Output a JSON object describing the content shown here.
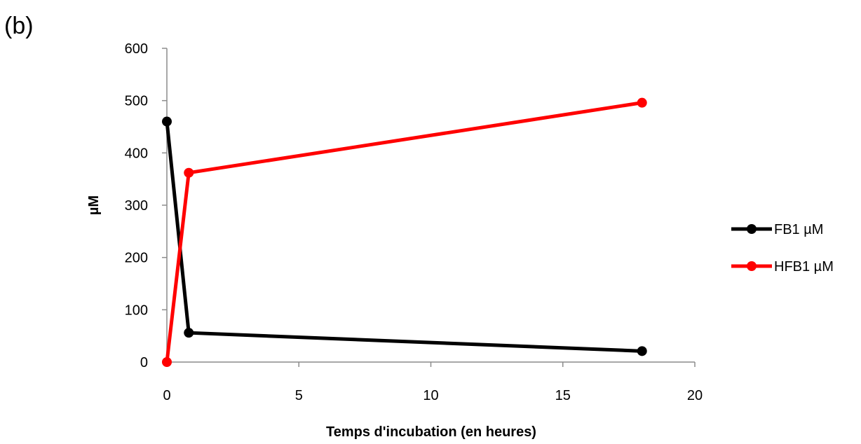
{
  "panel_label": "(b)",
  "chart_data": {
    "type": "line",
    "xlabel": "Temps d'incubation (en heures)",
    "ylabel": "µM",
    "xlim": [
      0,
      20
    ],
    "ylim": [
      0,
      600
    ],
    "xticks": [
      0,
      5,
      10,
      15,
      20
    ],
    "yticks": [
      0,
      100,
      200,
      300,
      400,
      500,
      600
    ],
    "grid": false,
    "legend_position": "right",
    "series": [
      {
        "name": "FB1 µM",
        "color": "#000000",
        "x": [
          0,
          0.83,
          18
        ],
        "y": [
          460,
          56,
          21
        ]
      },
      {
        "name": "HFB1 µM",
        "color": "#ff0000",
        "x": [
          0,
          0.83,
          18
        ],
        "y": [
          0,
          362,
          496
        ]
      }
    ]
  }
}
